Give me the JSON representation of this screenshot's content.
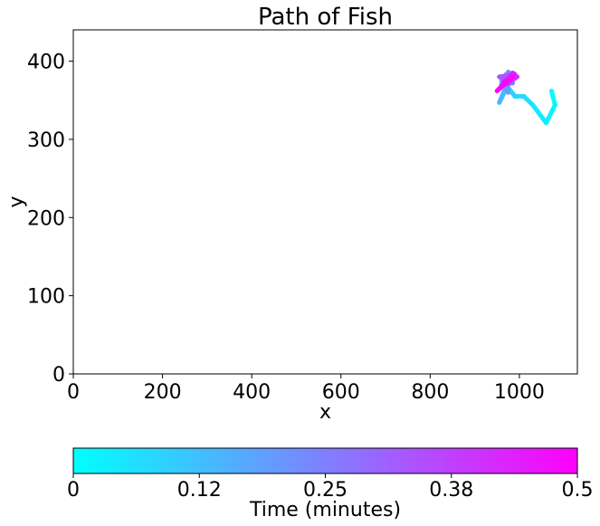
{
  "chart_data": {
    "type": "line",
    "title": "Path of Fish",
    "xlabel": "x",
    "ylabel": "y",
    "xlim": [
      0,
      1130
    ],
    "ylim": [
      0,
      440
    ],
    "xticks": [
      0,
      200,
      400,
      600,
      800,
      1000
    ],
    "xtick_labels": [
      "0",
      "200",
      "400",
      "600",
      "800",
      "1000"
    ],
    "yticks": [
      0,
      100,
      200,
      300,
      400
    ],
    "ytick_labels": [
      "0",
      "100",
      "200",
      "300",
      "400"
    ],
    "grid": false,
    "color_encoding": "time",
    "path": {
      "x": [
        1072,
        1080,
        1060,
        1030,
        1010,
        990,
        975,
        968,
        955,
        968,
        960,
        975,
        970,
        990,
        975,
        985,
        960,
        980,
        965,
        975,
        955,
        990,
        970,
        985,
        960,
        995,
        972,
        988,
        965,
        985,
        950,
        972
      ],
      "y": [
        362,
        344,
        321,
        344,
        355,
        355,
        366,
        362,
        347,
        365,
        374,
        360,
        383,
        378,
        386,
        372,
        370,
        384,
        378,
        372,
        380,
        383,
        376,
        385,
        368,
        380,
        371,
        384,
        373,
        380,
        362,
        375
      ],
      "t": [
        0.0,
        0.016,
        0.032,
        0.048,
        0.065,
        0.081,
        0.097,
        0.113,
        0.129,
        0.145,
        0.161,
        0.177,
        0.194,
        0.21,
        0.226,
        0.242,
        0.258,
        0.274,
        0.29,
        0.306,
        0.323,
        0.339,
        0.355,
        0.371,
        0.387,
        0.403,
        0.419,
        0.435,
        0.452,
        0.468,
        0.484,
        0.5
      ]
    },
    "colorbar": {
      "label": "Time (minutes)",
      "ticks": [
        0,
        0.125,
        0.25,
        0.375,
        0.5
      ],
      "tick_labels": [
        "0",
        "0.12",
        "0.25",
        "0.38",
        "0.5"
      ],
      "range": [
        0,
        0.5
      ],
      "cmap": [
        "#00ffff",
        "#ff00ff"
      ],
      "orientation": "horizontal",
      "position": "bottom"
    }
  }
}
